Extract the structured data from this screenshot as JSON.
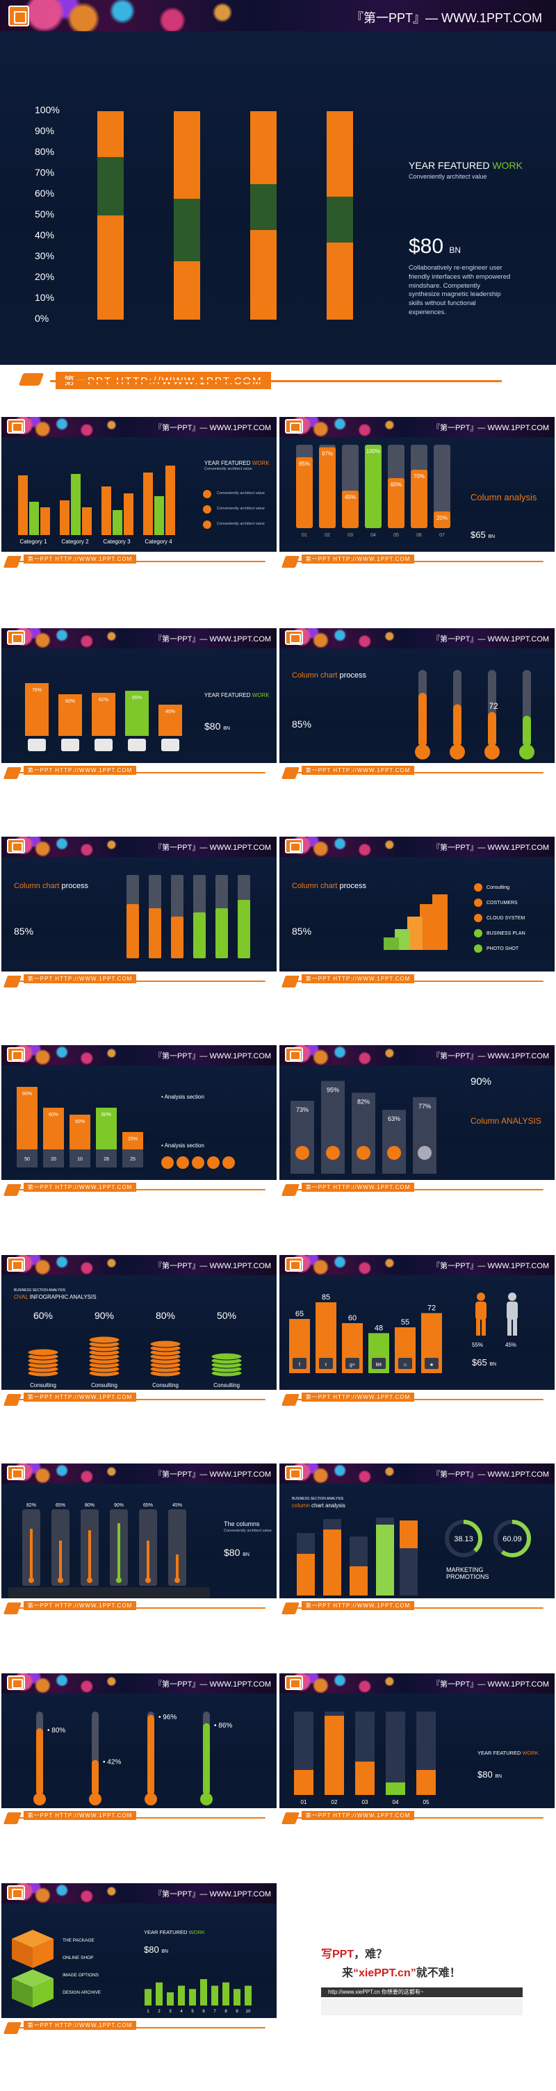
{
  "brand": "『第一PPT』— WWW.1PPT.COM",
  "footer_url": "第一PPT HTTP://WWW.1PPT.COM",
  "hero": {
    "title_white": "YEAR FEATURED ",
    "title_green": "WORK",
    "subtitle": "Conveniently architect value",
    "price": "$80",
    "price_unit": "BN",
    "body": "Collaboratively re-engineer user friendly interfaces with empowered mindshare. Competently synthesize magnetic leadership skills without functional experiences.",
    "axis": [
      "100%",
      "90%",
      "80%",
      "70%",
      "60%",
      "50%",
      "40%",
      "30%",
      "20%",
      "10%",
      "0%"
    ]
  },
  "chart_data": [
    {
      "type": "bar",
      "title": "",
      "stacked": true,
      "categories": [
        "1",
        "2",
        "3",
        "4"
      ],
      "series": [
        {
          "name": "",
          "values": [
            50,
            28,
            43,
            37
          ]
        },
        {
          "name": "",
          "values": [
            28,
            30,
            22,
            22
          ]
        },
        {
          "name": "",
          "values": [
            22,
            42,
            35,
            41
          ]
        }
      ],
      "ylim": [
        0,
        100
      ]
    },
    {
      "type": "bar",
      "categories": [
        "Category 1",
        "Category 2",
        "Category 3",
        "Category 4"
      ],
      "series": [
        {
          "name": "",
          "values": [
            4.3,
            2.5,
            3.5,
            4.5
          ]
        },
        {
          "name": "",
          "values": [
            2.4,
            4.4,
            1.8,
            2.8
          ]
        },
        {
          "name": "",
          "values": [
            2,
            2,
            3,
            5
          ]
        }
      ]
    },
    {
      "type": "bar",
      "values": [
        85,
        97,
        45,
        100,
        60,
        70,
        20
      ]
    },
    {
      "type": "bar",
      "values": [
        76,
        60,
        62,
        65,
        45
      ]
    },
    {
      "type": "bar",
      "values": [
        90,
        60,
        50,
        60,
        25
      ],
      "bottoms": [
        50,
        20,
        10,
        28,
        25
      ]
    },
    {
      "type": "bar",
      "values": [
        73,
        95,
        82,
        63,
        77
      ]
    },
    {
      "type": "bar",
      "values": [
        60,
        90,
        80,
        50
      ]
    },
    {
      "type": "bar",
      "values": [
        65,
        85,
        60,
        48,
        55,
        72
      ]
    },
    {
      "type": "bar",
      "values": [
        82,
        65,
        80,
        90,
        65,
        45
      ]
    },
    {
      "type": "bar",
      "values": [
        80,
        42,
        96,
        86
      ]
    },
    {
      "type": "bar",
      "values": [
        30,
        95,
        40,
        15,
        30
      ]
    },
    {
      "type": "bar",
      "categories": [
        "1",
        "2",
        "3",
        "4",
        "5",
        "6",
        "7",
        "8",
        "9",
        "10"
      ],
      "values": [
        5,
        7,
        4,
        6,
        5,
        8,
        6,
        7,
        5,
        6
      ]
    }
  ],
  "s2": {
    "title_white": "YEAR FEATURED ",
    "title_or": "WORK",
    "subtitle": "Conveniently architect value",
    "cats": [
      "Category 1",
      "Category 2",
      "Category 3",
      "Category 4"
    ],
    "legend": [
      "Conveniently architect value",
      "Conveniently architect value",
      "Conveniently architect value"
    ]
  },
  "s3": {
    "labels": [
      "85%",
      "97%",
      "45%",
      "100%",
      "60%",
      "70%",
      "20%"
    ],
    "nums": [
      "01",
      "02",
      "03",
      "04",
      "05",
      "06",
      "07"
    ],
    "title": "Column analysis",
    "price": "$65",
    "price_unit": "BN"
  },
  "s4": {
    "labels": [
      "76%",
      "60%",
      "62%",
      "65%",
      "45%"
    ],
    "title_white": "YEAR FEATURED ",
    "title_gr": "WORK",
    "price": "$80",
    "price_unit": "BN"
  },
  "s5": {
    "title_or": "Column chart ",
    "title_white": "process",
    "pct": "85%",
    "values": [
      "72"
    ]
  },
  "s6": {
    "title_or": "Column chart ",
    "title_white": "process",
    "pct": "85%"
  },
  "s7": {
    "title_or": "Column chart ",
    "title_white": "process",
    "pct": "85%",
    "items": [
      "Consulting",
      "COSTUMERS",
      "CLOUD SYSTEM",
      "BUSINESS PLAN",
      "PHOTO SHOT"
    ]
  },
  "s8": {
    "labels": [
      "90%",
      "60%",
      "50%",
      "60%",
      "25%"
    ],
    "bottoms": [
      "50",
      "20",
      "10",
      "28",
      "25"
    ],
    "section1": "Analysis section",
    "section2": "Analysis section"
  },
  "s9": {
    "labels": [
      "73%",
      "95%",
      "82%",
      "63%",
      "77%"
    ],
    "big": "90%",
    "title": "Column ANALYSIS"
  },
  "s10": {
    "header": "BUSINESS SECTION ANALYSIS",
    "title_or": "OVAL ",
    "title_white": "INFOGRAPHIC ANALYSIS",
    "labels": [
      "60%",
      "90%",
      "80%",
      "50%"
    ],
    "names": [
      "Consulting",
      "Consulting",
      "Consulting",
      "Consulting"
    ]
  },
  "s11": {
    "labels": [
      "65",
      "85",
      "60",
      "48",
      "55",
      "72"
    ],
    "icons": [
      "f",
      "t",
      "g+",
      "Bē",
      "☺",
      "★"
    ],
    "p1": "55%",
    "p2": "45%",
    "price": "$65",
    "price_unit": "BN"
  },
  "s12": {
    "labels": [
      "82%",
      "65%",
      "80%",
      "90%",
      "65%",
      "45%"
    ],
    "title": "The columns",
    "subtitle": "Conveniently architect value",
    "price": "$80",
    "price_unit": "BN"
  },
  "s13": {
    "header": "BUSINESS SECTION ANALYSIS",
    "title_or": "column ",
    "title_white": "chart analysis",
    "donut1": "38.13",
    "donut2": "60.09",
    "marketing": "MARKETING PROMOTIONS"
  },
  "s14": {
    "labels": [
      "80%",
      "42%",
      "96%",
      "86%"
    ]
  },
  "s15": {
    "nums": [
      "01",
      "02",
      "03",
      "04",
      "05"
    ],
    "title_white": "YEAR FEATURED ",
    "title_or": "WORK",
    "price": "$80",
    "price_unit": "BN"
  },
  "s16": {
    "items": [
      "THE PACKAGE",
      "ONLINE SHOP",
      "IMAGE OPTIONS",
      "DESIGN ARCHIVE"
    ],
    "title_white": "YEAR FEATURED ",
    "title_or": "WORK",
    "price": "$80",
    "price_unit": "BN",
    "xticks": [
      "1",
      "2",
      "3",
      "4",
      "5",
      "6",
      "7",
      "8",
      "9",
      "10"
    ]
  },
  "ad": {
    "line1_red": "写PPT",
    "line1_rest": "，难？",
    "line2_a": "来",
    "line2_red": "“xiePPT.cn”",
    "line2_b": "就不难！",
    "url": "http://www.xiePPT.cn  你想要的这都有~"
  },
  "colors": {
    "orange": "#f07a14",
    "green": "#7ec82a",
    "dark": "#0d1e3c",
    "darkgreen": "#2d5a2a"
  }
}
